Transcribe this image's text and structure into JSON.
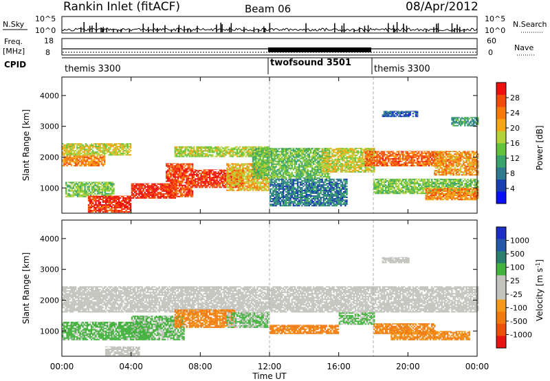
{
  "header": {
    "title": "Rankin Inlet (fitACF)",
    "beam": "Beam 06",
    "date": "08/Apr/2012"
  },
  "nsky_panel": {
    "left_label": "N.Sky",
    "right_label": "N.Search",
    "left_ticks": [
      "10^5",
      "10^0"
    ],
    "right_ticks": [
      "10^5",
      "10^0"
    ]
  },
  "freq_panel": {
    "left_label_line1": "Freq.",
    "left_label_line2": "[MHz]",
    "right_label": "Nave",
    "left_ticks": [
      "18",
      "8"
    ],
    "right_ticks": [
      "60",
      "0"
    ]
  },
  "cpid": {
    "label": "CPID",
    "segments": [
      {
        "name": "themis 3300",
        "start_hour": 0,
        "end_hour": 12
      },
      {
        "name": "twofsound 3501",
        "start_hour": 12,
        "end_hour": 18
      },
      {
        "name": "themis 3300",
        "start_hour": 18,
        "end_hour": 24
      }
    ]
  },
  "colors": {
    "power_scale": [
      "#0a10f5",
      "#1a3fb0",
      "#2f7a8e",
      "#3aa36b",
      "#63c23a",
      "#b4d23c",
      "#f5a614",
      "#f77a0a",
      "#f44a0c",
      "#ee1010"
    ],
    "velocity_scale": [
      "#1d2ec7",
      "#2457a8",
      "#2c7f6f",
      "#44b23e",
      "#c4c4be",
      "#c4c4be",
      "#f39a1c",
      "#f07a10",
      "#f0500c",
      "#e81414"
    ]
  },
  "chart_data": [
    {
      "type": "heatmap",
      "panel": "power",
      "ylabel": "Slant Range [km]",
      "ylim": [
        180,
        4600
      ],
      "yticks": [
        "1000",
        "2000",
        "3000",
        "4000"
      ],
      "xlim_hours": [
        0,
        24
      ],
      "xticks": [
        "00:00",
        "04:00",
        "08:00",
        "12:00",
        "16:00",
        "20:00",
        "00:00"
      ],
      "colorbar": {
        "label": "Power [dB]",
        "ticks": [
          "4",
          "8",
          "12",
          "16",
          "20",
          "24",
          "28"
        ],
        "range": [
          0,
          30
        ]
      },
      "regions": [
        {
          "h0": 0.0,
          "h1": 4.0,
          "r0": 2050,
          "r1": 2450,
          "value": 17
        },
        {
          "h0": 0.0,
          "h1": 2.5,
          "r0": 1700,
          "r1": 2050,
          "value": 22
        },
        {
          "h0": 0.2,
          "h1": 3.0,
          "r0": 700,
          "r1": 1200,
          "value": 14
        },
        {
          "h0": 1.5,
          "h1": 4.0,
          "r0": 200,
          "r1": 750,
          "value": 27
        },
        {
          "h0": 4.0,
          "h1": 6.5,
          "r0": 650,
          "r1": 1150,
          "value": 28
        },
        {
          "h0": 6.0,
          "h1": 7.5,
          "r0": 700,
          "r1": 1800,
          "value": 26
        },
        {
          "h0": 7.5,
          "h1": 10.5,
          "r0": 1000,
          "r1": 1600,
          "value": 27
        },
        {
          "h0": 9.5,
          "h1": 12.0,
          "r0": 900,
          "r1": 1800,
          "value": 19
        },
        {
          "h0": 6.5,
          "h1": 12.0,
          "r0": 2000,
          "r1": 2350,
          "value": 16
        },
        {
          "h0": 11.0,
          "h1": 15.5,
          "r0": 1300,
          "r1": 2300,
          "value": 13
        },
        {
          "h0": 12.0,
          "h1": 16.5,
          "r0": 400,
          "r1": 1300,
          "value": 8
        },
        {
          "h0": 15.0,
          "h1": 18.0,
          "r0": 1500,
          "r1": 2300,
          "value": 17
        },
        {
          "h0": 17.5,
          "h1": 22.0,
          "r0": 1700,
          "r1": 2200,
          "value": 24
        },
        {
          "h0": 21.5,
          "h1": 24.0,
          "r0": 1400,
          "r1": 2200,
          "value": 21
        },
        {
          "h0": 18.0,
          "h1": 24.0,
          "r0": 800,
          "r1": 1300,
          "value": 14
        },
        {
          "h0": 21.0,
          "h1": 24.0,
          "r0": 600,
          "r1": 1000,
          "value": 22
        },
        {
          "h0": 18.5,
          "h1": 20.5,
          "r0": 3300,
          "r1": 3500,
          "value": 6
        },
        {
          "h0": 22.5,
          "h1": 24.0,
          "r0": 3000,
          "r1": 3300,
          "value": 10
        }
      ]
    },
    {
      "type": "heatmap",
      "panel": "velocity",
      "ylabel": "Slant Range [km]",
      "xlabel": "Time UT",
      "ylim": [
        180,
        4600
      ],
      "yticks": [
        "1000",
        "2000",
        "3000",
        "4000"
      ],
      "xlim_hours": [
        0,
        24
      ],
      "xticks": [
        "00:00",
        "04:00",
        "08:00",
        "12:00",
        "16:00",
        "20:00",
        "00:00"
      ],
      "colorbar": {
        "label": "Velocity [m s^-1]",
        "ticks": [
          "1000",
          "500",
          "100",
          "25",
          "-25",
          "-100",
          "-500",
          "-1000"
        ]
      },
      "regions": [
        {
          "h0": 0.0,
          "h1": 24.0,
          "r0": 1600,
          "r1": 2450,
          "value": 0
        },
        {
          "h0": 0.0,
          "h1": 5.0,
          "r0": 700,
          "r1": 1300,
          "value": 150
        },
        {
          "h0": 4.0,
          "h1": 7.0,
          "r0": 700,
          "r1": 1500,
          "value": 120
        },
        {
          "h0": 6.5,
          "h1": 10.0,
          "r0": 1100,
          "r1": 1700,
          "value": -120
        },
        {
          "h0": 9.5,
          "h1": 12.0,
          "r0": 1100,
          "r1": 1600,
          "value": 110
        },
        {
          "h0": 12.0,
          "h1": 16.0,
          "r0": 900,
          "r1": 1200,
          "value": -150
        },
        {
          "h0": 16.0,
          "h1": 18.0,
          "r0": 1200,
          "r1": 1600,
          "value": 120
        },
        {
          "h0": 18.0,
          "h1": 21.5,
          "r0": 900,
          "r1": 1250,
          "value": -130
        },
        {
          "h0": 19.0,
          "h1": 23.5,
          "r0": 700,
          "r1": 1000,
          "value": -110
        },
        {
          "h0": 2.5,
          "h1": 4.5,
          "r0": 200,
          "r1": 500,
          "value": 0
        },
        {
          "h0": 18.5,
          "h1": 20.0,
          "r0": 3200,
          "r1": 3400,
          "value": 0
        }
      ]
    }
  ]
}
